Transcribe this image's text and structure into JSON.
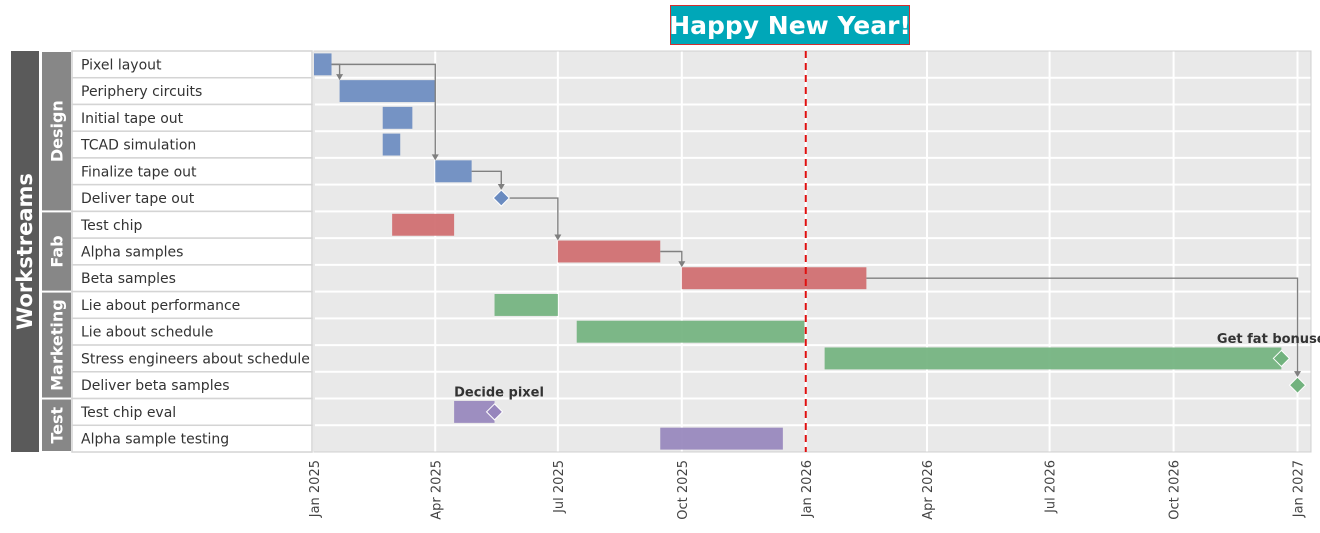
{
  "chart_data": {
    "type": "gantt",
    "title": "Happy New Year!",
    "root_label": "Workstreams",
    "x_axis": {
      "min": "2025-01-01",
      "max": "2027-01-11",
      "ticks": [
        {
          "date": "2025-01-01",
          "label": "Jan 2025"
        },
        {
          "date": "2025-04-01",
          "label": "Apr 2025"
        },
        {
          "date": "2025-07-01",
          "label": "Jul 2025"
        },
        {
          "date": "2025-10-01",
          "label": "Oct 2025"
        },
        {
          "date": "2026-01-01",
          "label": "Jan 2026"
        },
        {
          "date": "2026-04-01",
          "label": "Apr 2026"
        },
        {
          "date": "2026-07-01",
          "label": "Jul 2026"
        },
        {
          "date": "2026-10-01",
          "label": "Oct 2026"
        },
        {
          "date": "2027-01-01",
          "label": "Jan 2027"
        }
      ],
      "grid": true
    },
    "today_line": "2026-01-01",
    "groups": [
      {
        "name": "Design",
        "color": "#6a8bc0",
        "tasks": [
          "Pixel layout",
          "Periphery circuits",
          "Initial tape out",
          "TCAD simulation",
          "Finalize tape out",
          "Deliver tape out"
        ]
      },
      {
        "name": "Fab",
        "color": "#cf6b6e",
        "tasks": [
          "Test chip",
          "Alpha samples",
          "Beta samples"
        ]
      },
      {
        "name": "Marketing",
        "color": "#72b27e",
        "tasks": [
          "Lie about performance",
          "Lie about schedule",
          "Stress engineers about schedule",
          "Deliver beta samples"
        ]
      },
      {
        "name": "Test",
        "color": "#9685bc",
        "tasks": [
          "Test chip eval",
          "Alpha sample testing"
        ]
      }
    ],
    "tasks": [
      {
        "name": "Pixel layout",
        "group": "Design",
        "start": "2025-01-01",
        "end": "2025-01-14"
      },
      {
        "name": "Periphery circuits",
        "group": "Design",
        "start": "2025-01-20",
        "end": "2025-04-01"
      },
      {
        "name": "Initial tape out",
        "group": "Design",
        "start": "2025-02-21",
        "end": "2025-03-15"
      },
      {
        "name": "TCAD simulation",
        "group": "Design",
        "start": "2025-02-21",
        "end": "2025-03-06"
      },
      {
        "name": "Finalize tape out",
        "group": "Design",
        "start": "2025-04-01",
        "end": "2025-04-28"
      },
      {
        "name": "Deliver tape out",
        "group": "Design",
        "milestone": "2025-05-20"
      },
      {
        "name": "Test chip",
        "group": "Fab",
        "start": "2025-02-28",
        "end": "2025-04-15"
      },
      {
        "name": "Alpha samples",
        "group": "Fab",
        "start": "2025-07-01",
        "end": "2025-09-15"
      },
      {
        "name": "Beta samples",
        "group": "Fab",
        "start": "2025-10-01",
        "end": "2026-02-15"
      },
      {
        "name": "Lie about performance",
        "group": "Marketing",
        "start": "2025-05-15",
        "end": "2025-07-01"
      },
      {
        "name": "Lie about schedule",
        "group": "Marketing",
        "start": "2025-07-15",
        "end": "2025-12-31"
      },
      {
        "name": "Stress engineers about schedule",
        "group": "Marketing",
        "start": "2026-01-15",
        "end": "2026-12-20",
        "milestone": "2026-12-20",
        "annotation": "Get fat bonuses"
      },
      {
        "name": "Deliver beta samples",
        "group": "Marketing",
        "milestone": "2027-01-01"
      },
      {
        "name": "Test chip eval",
        "group": "Test",
        "start": "2025-04-15",
        "end": "2025-05-15",
        "milestone": "2025-05-15",
        "annotation": "Decide pixel"
      },
      {
        "name": "Alpha sample testing",
        "group": "Test",
        "start": "2025-09-15",
        "end": "2025-12-15"
      }
    ],
    "dependencies": [
      {
        "from": "Pixel layout",
        "to": "Periphery circuits"
      },
      {
        "from": "Pixel layout",
        "to": "Finalize tape out"
      },
      {
        "from": "Finalize tape out",
        "to": "Deliver tape out"
      },
      {
        "from": "Deliver tape out",
        "to": "Alpha samples"
      },
      {
        "from": "Alpha samples",
        "to": "Beta samples"
      },
      {
        "from": "Beta samples",
        "to": "Deliver beta samples"
      }
    ]
  }
}
